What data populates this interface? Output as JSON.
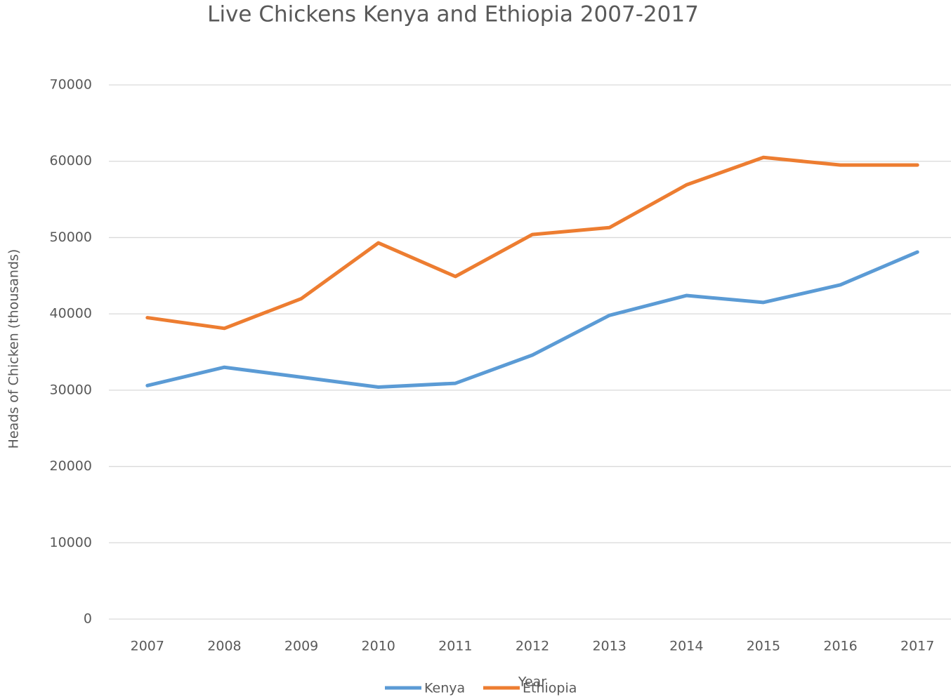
{
  "chart_data": {
    "type": "line",
    "title": "Live Chickens Kenya and Ethiopia 2007-2017",
    "x_label": "Year",
    "y_label": "Heads of Chicken (thousands)",
    "categories": [
      "2007",
      "2008",
      "2009",
      "2010",
      "2011",
      "2012",
      "2013",
      "2014",
      "2015",
      "2016",
      "2017"
    ],
    "series": [
      {
        "name": "Kenya",
        "color": "#5b9bd5",
        "values": [
          30600,
          33000,
          31700,
          30400,
          30900,
          34600,
          39800,
          42400,
          41500,
          43800,
          48100
        ]
      },
      {
        "name": "Ethiopia",
        "color": "#ed7d31",
        "values": [
          39500,
          38100,
          42000,
          49300,
          44900,
          50400,
          51300,
          56900,
          60500,
          59500,
          59500
        ]
      }
    ],
    "ylim": [
      0,
      70000
    ],
    "yticks": [
      0,
      10000,
      20000,
      30000,
      40000,
      50000,
      60000,
      70000
    ],
    "grid": true,
    "legend": "bottom"
  }
}
